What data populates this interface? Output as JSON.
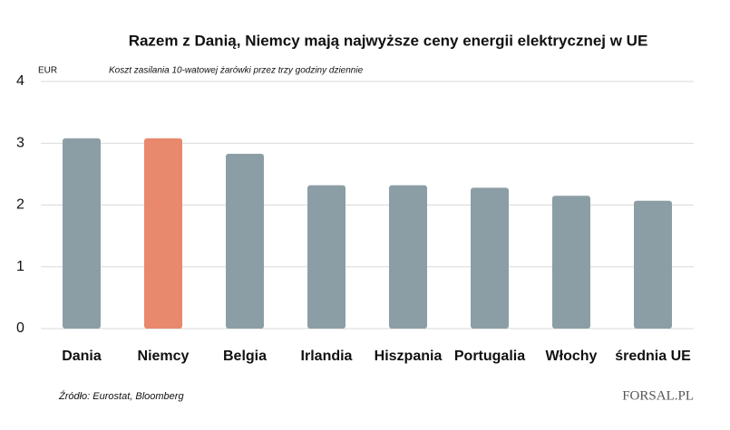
{
  "chart_data": {
    "type": "bar",
    "title": "Razem z Danią, Niemcy mają najwyższe ceny energii elektrycznej w UE",
    "y_label": "EUR",
    "subtitle": "Koszt zasilania 10-watowej żarówki przez trzy godziny dziennie",
    "categories": [
      "Dania",
      "Niemcy",
      "Belgia",
      "Irlandia",
      "Hiszpania",
      "Portugalia",
      "Włochy",
      "średnia UE"
    ],
    "values": [
      3.08,
      3.08,
      2.83,
      2.32,
      2.32,
      2.28,
      2.15,
      2.07
    ],
    "colors": [
      "#8c9ea5",
      "#e8886c",
      "#8c9ea5",
      "#8c9ea5",
      "#8c9ea5",
      "#8c9ea5",
      "#8c9ea5",
      "#8c9ea5"
    ],
    "ylim": [
      0,
      4
    ],
    "yticks": [
      0,
      1,
      2,
      3,
      4
    ],
    "grid": true,
    "source": "Źródło:  Eurostat, Bloomberg",
    "logo": "FORSAL.PL"
  }
}
